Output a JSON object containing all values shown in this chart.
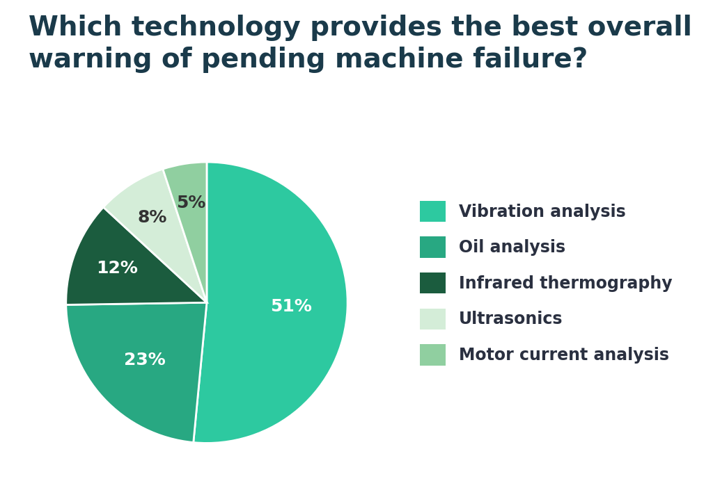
{
  "title": "Which technology provides the best overall\nwarning of pending machine failure?",
  "slices": [
    51,
    23,
    12,
    8,
    5
  ],
  "labels": [
    "Vibration analysis",
    "Oil analysis",
    "Infrared thermography",
    "Ultrasonics",
    "Motor current analysis"
  ],
  "colors": [
    "#2DC9A0",
    "#28A882",
    "#1B5C3E",
    "#D4EDD8",
    "#90CFA0"
  ],
  "pct_labels": [
    "51%",
    "23%",
    "12%",
    "8%",
    "5%"
  ],
  "pct_colors": [
    "white",
    "white",
    "white",
    "#333333",
    "#333333"
  ],
  "title_color": "#1A3A4A",
  "legend_text_color": "#2a3040",
  "title_fontsize": 28,
  "legend_fontsize": 17,
  "pct_fontsize": 18,
  "background_color": "#ffffff",
  "startangle": 90
}
